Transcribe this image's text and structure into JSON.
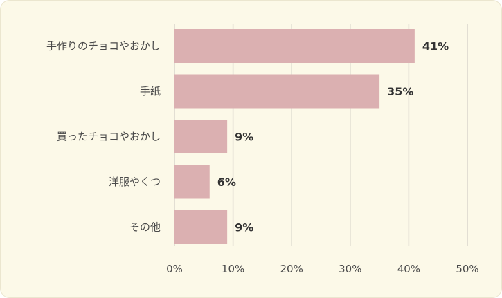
{
  "chart_data": {
    "type": "bar",
    "orientation": "horizontal",
    "categories": [
      "手作りのチョコやおかし",
      "手紙",
      "買ったチョコやおかし",
      "洋服やくつ",
      "その他"
    ],
    "values": [
      41,
      35,
      9,
      6,
      9
    ],
    "value_labels": [
      "41%",
      "35%",
      "9%",
      "6%",
      "9%"
    ],
    "xlim": [
      0,
      50
    ],
    "ticks": [
      0,
      10,
      20,
      30,
      40,
      50
    ],
    "tick_labels": [
      "0%",
      "10%",
      "20%",
      "30%",
      "40%",
      "50%"
    ],
    "grid": "vertical",
    "bar_color": "#dbb0b1",
    "grid_color": "#d9d6cc",
    "background_color": "#fcf9e8"
  }
}
